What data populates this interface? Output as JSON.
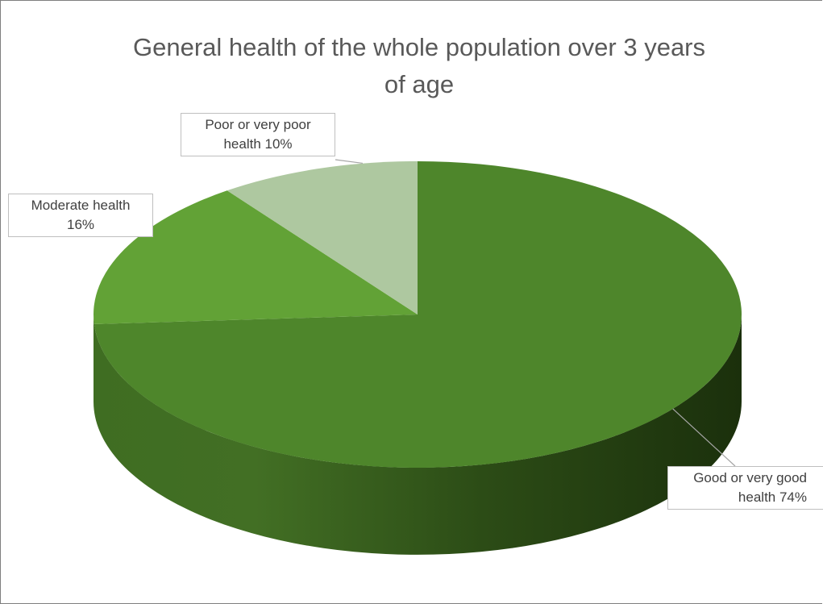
{
  "chart_data": {
    "type": "pie",
    "title": "General health of the whole population over 3 years of age",
    "title_lines": [
      "General health of the whole population over 3 years",
      "of age"
    ],
    "style": "3d",
    "legend": "none",
    "slices": [
      {
        "label": "Good or very good health",
        "value": 74,
        "data_label": "74%",
        "label_lines": [
          "Good or very good",
          "health 74%"
        ],
        "color": "#4e862b"
      },
      {
        "label": "Moderate health",
        "value": 16,
        "data_label": "16%",
        "label_lines": [
          "Moderate health",
          "16%"
        ],
        "color": "#62a236"
      },
      {
        "label": "Poor or very poor health",
        "value": 10,
        "data_label": "10%",
        "label_lines": [
          "Poor or very poor",
          "health 10%"
        ],
        "color": "#aec8a0"
      }
    ]
  }
}
